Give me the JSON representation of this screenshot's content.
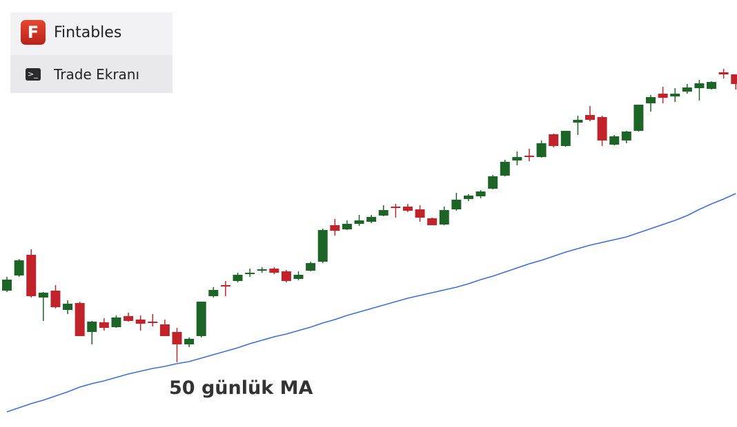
{
  "header": {
    "logo": "F",
    "brand": "Fintables",
    "menu_item": "Trade Ekranı"
  },
  "chart_data": {
    "type": "candlestick",
    "open": [
      198,
      220,
      250,
      188,
      198,
      170,
      180,
      138,
      152,
      145,
      161,
      156,
      153,
      149,
      138,
      120,
      132,
      190,
      206,
      212,
      222,
      227,
      230,
      226,
      215,
      227,
      240,
      293,
      287,
      295,
      298,
      307,
      320,
      320,
      316,
      303,
      294,
      316,
      331,
      335,
      346,
      365,
      387,
      394,
      392,
      425,
      408,
      442,
      453,
      450,
      410,
      416,
      430,
      470,
      484,
      480,
      487,
      492,
      491,
      515,
      512
    ],
    "high": [
      218,
      244,
      258,
      196,
      206,
      184,
      182,
      154,
      158,
      162,
      166,
      162,
      164,
      156,
      144,
      130,
      182,
      203,
      212,
      224,
      230,
      232,
      232,
      228,
      226,
      240,
      288,
      302,
      300,
      308,
      308,
      322,
      324,
      324,
      322,
      304,
      320,
      340,
      338,
      344,
      366,
      388,
      400,
      404,
      416,
      426,
      430,
      452,
      466,
      452,
      424,
      430,
      468,
      482,
      494,
      492,
      498,
      504,
      502,
      520,
      512
    ],
    "low": [
      196,
      218,
      188,
      154,
      172,
      164,
      132,
      120,
      140,
      144,
      153,
      140,
      146,
      132,
      94,
      116,
      130,
      188,
      190,
      210,
      218,
      224,
      222,
      210,
      213,
      226,
      238,
      278,
      286,
      292,
      296,
      306,
      304,
      312,
      298,
      293,
      293,
      314,
      328,
      332,
      345,
      364,
      380,
      386,
      391,
      406,
      407,
      424,
      444,
      408,
      409,
      412,
      429,
      458,
      470,
      472,
      484,
      474,
      490,
      506,
      490
    ],
    "close": [
      214,
      242,
      190,
      195,
      174,
      179,
      132,
      153,
      144,
      159,
      154,
      150,
      151,
      132,
      120,
      128,
      182,
      199,
      204,
      221,
      224,
      229,
      224,
      212,
      221,
      238,
      286,
      285,
      295,
      300,
      305,
      315,
      318,
      314,
      304,
      293,
      315,
      330,
      336,
      342,
      364,
      385,
      392,
      392,
      412,
      408,
      430,
      446,
      446,
      416,
      422,
      429,
      468,
      479,
      478,
      484,
      493,
      499,
      501,
      512,
      498
    ],
    "up_color": "#1d6526",
    "down_color": "#c1232b",
    "ma": {
      "color": "#3a6ee0",
      "values": [
        22,
        28,
        34,
        39,
        45,
        51,
        58,
        63,
        67,
        72,
        77,
        81,
        85,
        88,
        92,
        95,
        100,
        105,
        110,
        115,
        121,
        126,
        131,
        135,
        140,
        145,
        151,
        156,
        162,
        167,
        172,
        177,
        182,
        187,
        191,
        195,
        199,
        203,
        208,
        214,
        219,
        225,
        231,
        237,
        242,
        248,
        254,
        259,
        264,
        268,
        272,
        276,
        282,
        288,
        294,
        300,
        307,
        316,
        324,
        331,
        339
      ]
    },
    "annotation": "50 günlük MA",
    "xlim": [
      -0.57,
      60.1
    ],
    "ylim": [
      0,
      620
    ]
  }
}
